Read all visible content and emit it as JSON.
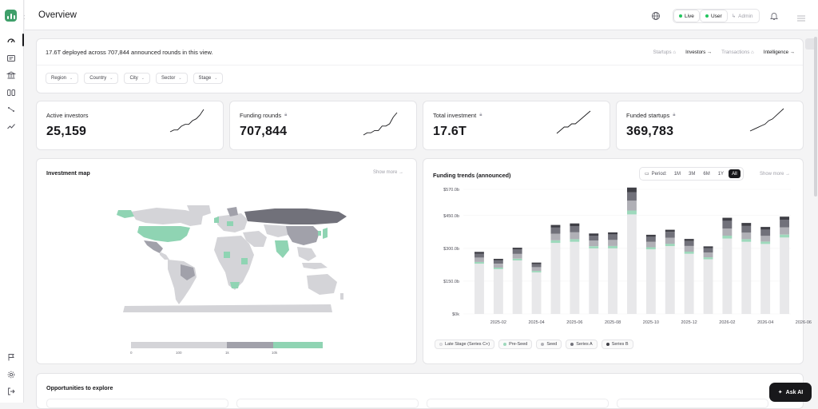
{
  "header": {
    "title": "Overview",
    "mode_live": "Live",
    "mode_user": "User",
    "mode_admin": "Admin"
  },
  "summary": {
    "text": "17.6T deployed across 707,844 announced rounds in this view.",
    "views": [
      "Startups",
      "Investors",
      "Transactions",
      "Intelligence"
    ],
    "active_view": "Investors",
    "filters": [
      "Region",
      "Country",
      "City",
      "Sector",
      "Stage"
    ]
  },
  "kpis": [
    {
      "label": "Active investors",
      "value": "25,159",
      "locked": false,
      "trend": [
        2,
        3,
        3,
        5,
        6,
        6,
        8,
        9,
        11,
        14
      ]
    },
    {
      "label": "Funding rounds",
      "value": "707,844",
      "locked": true,
      "trend": [
        2,
        3,
        3,
        4,
        4,
        6,
        6,
        7,
        10,
        12
      ]
    },
    {
      "label": "Total investment",
      "value": "17.6T",
      "locked": true,
      "trend": [
        2,
        3,
        4,
        4,
        5,
        5,
        6,
        7,
        8,
        9
      ]
    },
    {
      "label": "Funded startups",
      "value": "369,783",
      "locked": false,
      "trend": [
        2,
        3,
        4,
        5,
        6,
        8,
        9,
        11,
        13,
        15
      ]
    }
  ],
  "map": {
    "title": "Investment map",
    "show_more": "Show more →",
    "scale_labels": [
      "0",
      "100",
      "1k",
      "10k"
    ]
  },
  "trends": {
    "title": "Funding trends (announced)",
    "period_label": "Period:",
    "periods": [
      "1M",
      "3M",
      "6M",
      "1Y",
      "All"
    ],
    "active_period": "All",
    "show_more": "Show more →"
  },
  "opportunities": {
    "title": "Opportunities to explore"
  },
  "ask_ai": "Ask AI",
  "colors": {
    "late": "#e8e8ea",
    "preseed": "#9ed9bc",
    "seed": "#b0b0b6",
    "seriesA": "#71717a",
    "seriesB": "#3f3f46",
    "map_high": "#8fd4b3",
    "map_mid": "#a1a1aa",
    "map_low": "#d4d4d8"
  },
  "chart_data": {
    "type": "bar",
    "stacked": true,
    "x": [
      "2025-01",
      "2025-02",
      "2025-03",
      "2025-04",
      "2025-05",
      "2025-06",
      "2025-07",
      "2025-08",
      "2025-09",
      "2025-10",
      "2025-11",
      "2025-12",
      "2026-01",
      "2026-02",
      "2026-03",
      "2026-04",
      "2026-05"
    ],
    "xticks": [
      "2025-02",
      "2025-04",
      "2025-06",
      "2025-08",
      "2025-10",
      "2025-12",
      "2026-02",
      "2026-04",
      "2026-06"
    ],
    "yticks": [
      "$0k",
      "$150.0b",
      "$300.0b",
      "$450.0b",
      "$570.0b"
    ],
    "ylim": [
      0,
      570
    ],
    "series": [
      {
        "name": "Late Stage (Series C+)",
        "values": [
          230,
          205,
          245,
          190,
          325,
          330,
          300,
          300,
          455,
          295,
          310,
          275,
          250,
          345,
          330,
          320,
          350
        ]
      },
      {
        "name": "Pre-Seed",
        "values": [
          8,
          7,
          8,
          7,
          12,
          12,
          10,
          11,
          18,
          10,
          11,
          10,
          9,
          13,
          12,
          11,
          13
        ]
      },
      {
        "name": "Seed",
        "values": [
          20,
          18,
          22,
          17,
          30,
          32,
          26,
          28,
          45,
          25,
          28,
          26,
          22,
          33,
          30,
          27,
          33
        ]
      },
      {
        "name": "Series A",
        "values": [
          18,
          15,
          20,
          14,
          28,
          28,
          22,
          24,
          38,
          22,
          26,
          22,
          20,
          35,
          30,
          28,
          35
        ]
      },
      {
        "name": "Series B",
        "values": [
          8,
          7,
          8,
          7,
          12,
          12,
          10,
          10,
          22,
          10,
          10,
          10,
          8,
          14,
          14,
          12,
          14
        ]
      }
    ]
  }
}
